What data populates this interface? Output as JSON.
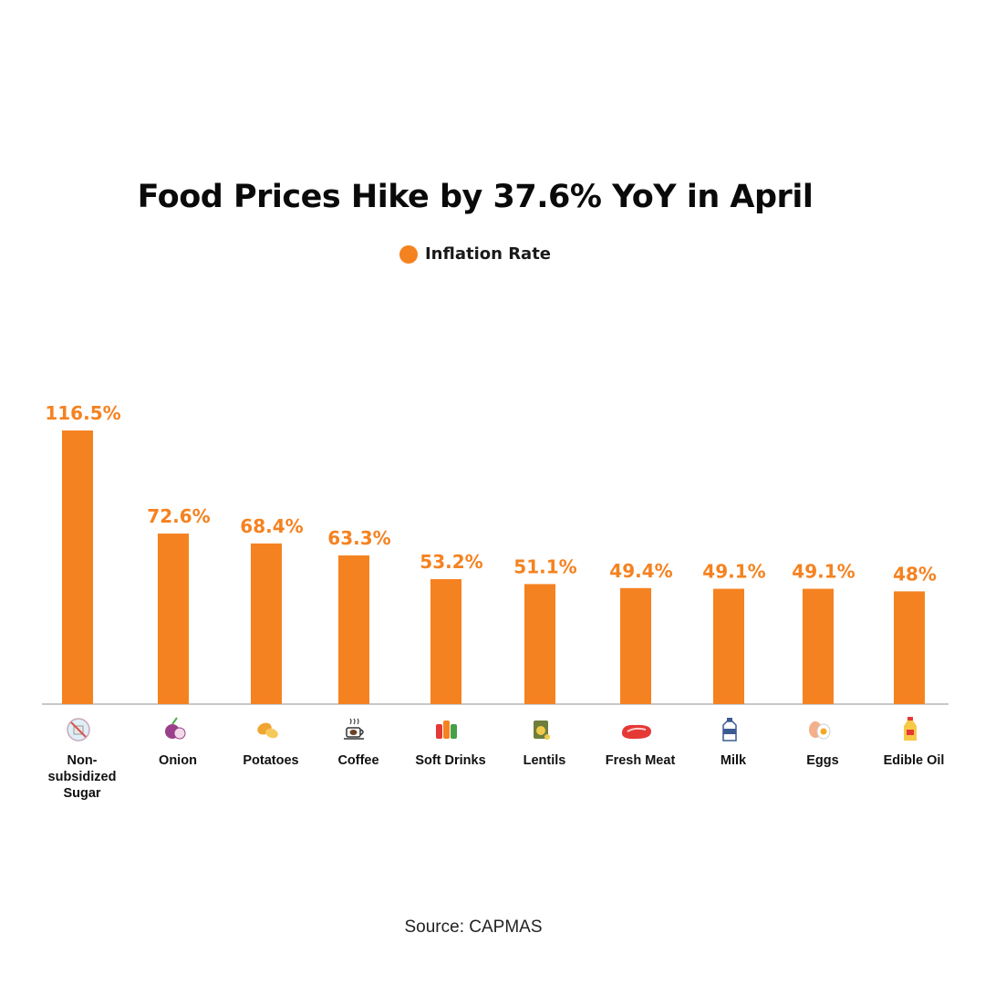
{
  "title": "Food Prices Hike by 37.6% YoY in April",
  "legend": {
    "label": "Inflation Rate",
    "color": "#f58220"
  },
  "source": "Source: CAPMAS",
  "chart_data": {
    "type": "bar",
    "title": "Food Prices Hike by 37.6% YoY in April",
    "xlabel": "",
    "ylabel": "",
    "grid": false,
    "legend_position": "top-center",
    "bar_color": "#f58220",
    "ylim": [
      0,
      120
    ],
    "categories": [
      {
        "label": [
          "Non-",
          "subsidized",
          "Sugar"
        ],
        "icon": "no-sugar-icon"
      },
      {
        "label": [
          "Onion"
        ],
        "icon": "onion-icon"
      },
      {
        "label": [
          "Potatoes"
        ],
        "icon": "potato-icon"
      },
      {
        "label": [
          "Coffee"
        ],
        "icon": "coffee-cup-icon"
      },
      {
        "label": [
          "Soft Drinks"
        ],
        "icon": "soft-drinks-icon"
      },
      {
        "label": [
          "Lentils"
        ],
        "icon": "lentils-bag-icon"
      },
      {
        "label": [
          "Fresh Meat"
        ],
        "icon": "meat-icon"
      },
      {
        "label": [
          "Milk"
        ],
        "icon": "milk-bottle-icon"
      },
      {
        "label": [
          "Eggs"
        ],
        "icon": "eggs-icon"
      },
      {
        "label": [
          "Edible Oil"
        ],
        "icon": "oil-bottle-icon"
      }
    ],
    "series": [
      {
        "values": [
          116.5,
          72.6,
          68.4,
          63.3,
          53.2,
          51.1,
          49.4,
          49.1,
          49.1,
          48
        ],
        "data_labels": [
          "116.5%",
          "72.6%",
          "68.4%",
          "63.3%",
          "53.2%",
          "51.1%",
          "49.4%",
          "49.1%",
          "49.1%",
          "48%"
        ]
      }
    ]
  }
}
